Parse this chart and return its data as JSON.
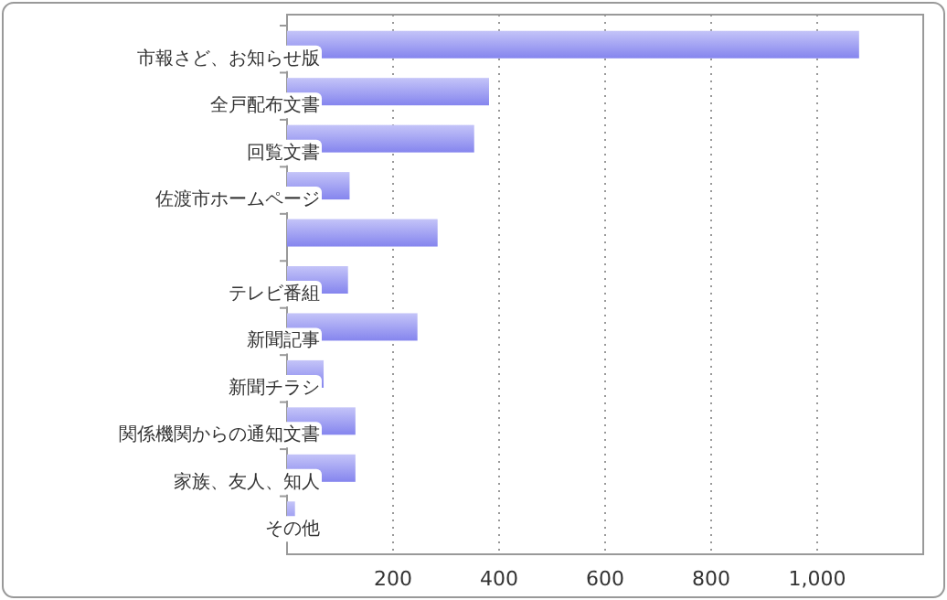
{
  "chart_data": {
    "type": "bar",
    "orientation": "horizontal",
    "categories": [
      "市報さど、お知らせ版",
      "全戸配布文書",
      "回覧文書",
      "佐渡市ホームページ",
      null,
      "テレビ番組",
      "新聞記事",
      "新聞チラシ",
      "関係機関からの通知文書",
      "家族、友人、知人",
      "その他"
    ],
    "values": [
      1079,
      381,
      353,
      118,
      284,
      115,
      246,
      69,
      129,
      129,
      15
    ],
    "color": "#8585ee",
    "xlim": [
      0,
      1200
    ],
    "xticks": [
      200,
      400,
      600,
      800,
      {
        "value": 1000,
        "label": "1,000"
      }
    ],
    "grid": "x"
  }
}
